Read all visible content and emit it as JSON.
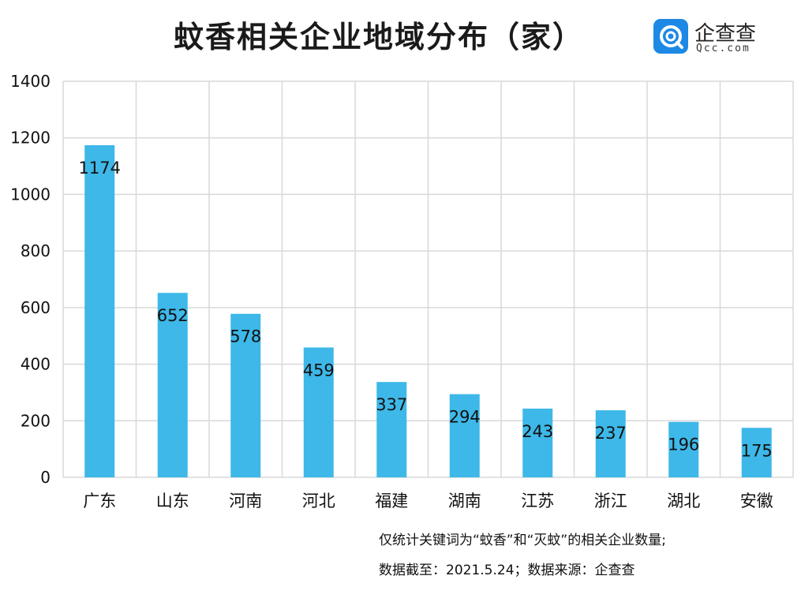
{
  "header": {
    "title": "蚊香相关企业地域分布（家）"
  },
  "logo": {
    "name": "企查查",
    "sub": "Qcc.com",
    "brand_color": "#1e88e5"
  },
  "notes": {
    "line1": "仅统计关键词为“蚊香”和“灭蚊”的相关企业数量;",
    "line2": "数据截至：2021.5.24；数据来源：企查查"
  },
  "chart_data": {
    "type": "bar",
    "title": "蚊香相关企业地域分布（家）",
    "categories": [
      "广东",
      "山东",
      "河南",
      "河北",
      "福建",
      "湖南",
      "江苏",
      "浙江",
      "湖北",
      "安徽"
    ],
    "values": [
      1174,
      652,
      578,
      459,
      337,
      294,
      243,
      237,
      196,
      175
    ],
    "ylim": [
      0,
      1400
    ],
    "yticks": [
      0,
      200,
      400,
      600,
      800,
      1000,
      1200,
      1400
    ],
    "xlabel": "",
    "ylabel": "",
    "grid": true,
    "bar_color": "#3db8e8",
    "grid_color": "#d9d9d9"
  }
}
